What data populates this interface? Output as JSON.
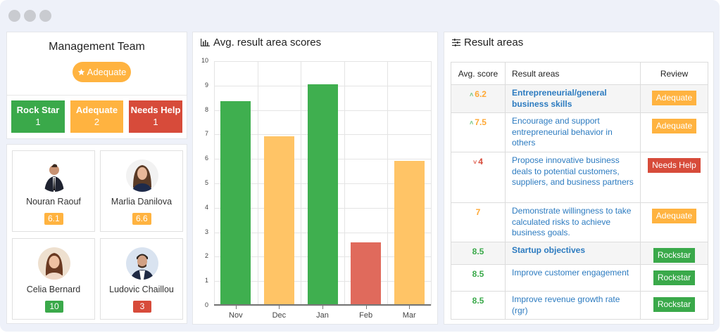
{
  "window": {
    "controls": [
      "close",
      "minimize",
      "maximize"
    ]
  },
  "team": {
    "title": "Management Team",
    "status_badge": {
      "icon": "star-icon",
      "label": "Adequate"
    },
    "stats": [
      {
        "label": "Rock Star",
        "count": "1",
        "color": "#3aa94a"
      },
      {
        "label": "Adequate",
        "count": "2",
        "color": "#ffb340"
      },
      {
        "label": "Needs Help",
        "count": "1",
        "color": "#d74b3a"
      }
    ]
  },
  "people": [
    {
      "name": "Nouran Raouf",
      "score": "6.1",
      "status": "adequate"
    },
    {
      "name": "Marlia Danilova",
      "score": "6.6",
      "status": "adequate"
    },
    {
      "name": "Celia Bernard",
      "score": "10",
      "status": "rockstar"
    },
    {
      "name": "Ludovic Chaillou",
      "score": "3",
      "status": "needs-help"
    }
  ],
  "chart_panel": {
    "title": "Avg. result area scores",
    "icon": "bar-chart-icon"
  },
  "chart_data": {
    "type": "bar",
    "title": "Avg. result area scores",
    "categories": [
      "Nov",
      "Dec",
      "Jan",
      "Feb",
      "Mar"
    ],
    "values": [
      8.35,
      6.93,
      9.05,
      2.6,
      5.93
    ],
    "colors": [
      "#3faf4f",
      "#ffc466",
      "#3faf4f",
      "#e06a5c",
      "#ffc466"
    ],
    "xlabel": "",
    "ylabel": "",
    "ylim": [
      0,
      10
    ],
    "yticks": [
      "0",
      "1",
      "2",
      "3",
      "4",
      "5",
      "6",
      "7",
      "8",
      "9",
      "10"
    ],
    "grid": true,
    "legend": false
  },
  "areas_panel": {
    "title": "Result areas",
    "icon": "sliders-icon",
    "columns": [
      "Avg. score",
      "Result areas",
      "Review"
    ],
    "rows": [
      {
        "score": "6.2",
        "trend": "up",
        "score_color": "adequate",
        "area": "Entrepreneurial/general business skills",
        "group": true,
        "review": "Adequate",
        "review_status": "adequate"
      },
      {
        "score": "7.5",
        "trend": "up",
        "score_color": "adequate",
        "area": "Encourage and support entrepreneurial behavior in others",
        "group": false,
        "review": "Adequate",
        "review_status": "adequate"
      },
      {
        "score": "4",
        "trend": "down",
        "score_color": "needs",
        "area": "Propose innovative business deals to potential customers, suppliers, and business partners",
        "group": false,
        "review": "Needs Help",
        "review_status": "needs"
      },
      {
        "score": "7",
        "trend": "",
        "score_color": "adequate",
        "area": "Demonstrate willingness to take calculated risks to achieve business goals.",
        "group": false,
        "review": "Adequate",
        "review_status": "adequate"
      },
      {
        "score": "8.5",
        "trend": "",
        "score_color": "rock",
        "area": "Startup objectives",
        "group": true,
        "review": "Rockstar",
        "review_status": "rock"
      },
      {
        "score": "8.5",
        "trend": "",
        "score_color": "rock",
        "area": "Improve customer engagement",
        "group": false,
        "review": "Rockstar",
        "review_status": "rock"
      },
      {
        "score": "8.5",
        "trend": "",
        "score_color": "rock",
        "area": "Improve revenue growth rate (rgr)",
        "group": false,
        "review": "Rockstar",
        "review_status": "rock"
      }
    ]
  }
}
